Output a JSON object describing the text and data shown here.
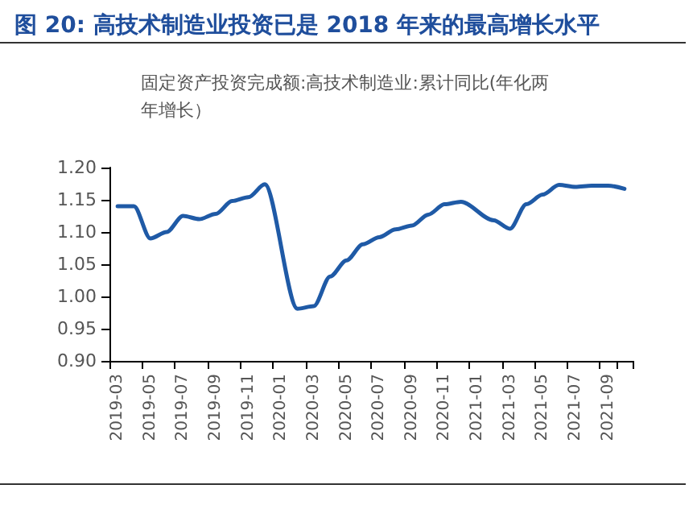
{
  "chart_data": {
    "type": "line",
    "title": "图 20: 高技术制造业投资已是 2018 年来的最高增长水平",
    "subtitle": "固定资产投资完成额:高技术制造业:累计同比(年化两年增长）",
    "categories": [
      "2019-03",
      null,
      "2019-05",
      null,
      "2019-07",
      null,
      "2019-09",
      null,
      "2019-11",
      null,
      "2020-01",
      null,
      "2020-03",
      null,
      "2020-05",
      null,
      "2020-07",
      null,
      "2020-09",
      null,
      "2020-11",
      null,
      "2021-01",
      null,
      "2021-03",
      null,
      "2021-05",
      null,
      "2021-07",
      null,
      "2021-09",
      null
    ],
    "series": [
      {
        "color": "#1f5aa6",
        "values": [
          1.14,
          1.14,
          1.09,
          1.1,
          1.125,
          1.12,
          1.128,
          1.148,
          1.154,
          1.174,
          null,
          0.981,
          0.985,
          1.031,
          1.056,
          1.081,
          1.092,
          1.104,
          1.11,
          1.127,
          1.143,
          1.147,
          null,
          1.118,
          1.105,
          1.143,
          1.158,
          1.173,
          1.17,
          1.172,
          1.172,
          1.167
        ]
      }
    ],
    "ylim": [
      0.9,
      1.2
    ],
    "yticks": [
      {
        "value": 0.9,
        "label": "0.90"
      },
      0.95,
      {
        "value": 1.0,
        "label": "1.00"
      },
      1.05,
      {
        "value": 1.1,
        "label": "1.10"
      },
      1.15,
      {
        "value": 1.2,
        "label": "1.20"
      }
    ],
    "grid": false,
    "marker": "none",
    "line_style": "solid"
  }
}
